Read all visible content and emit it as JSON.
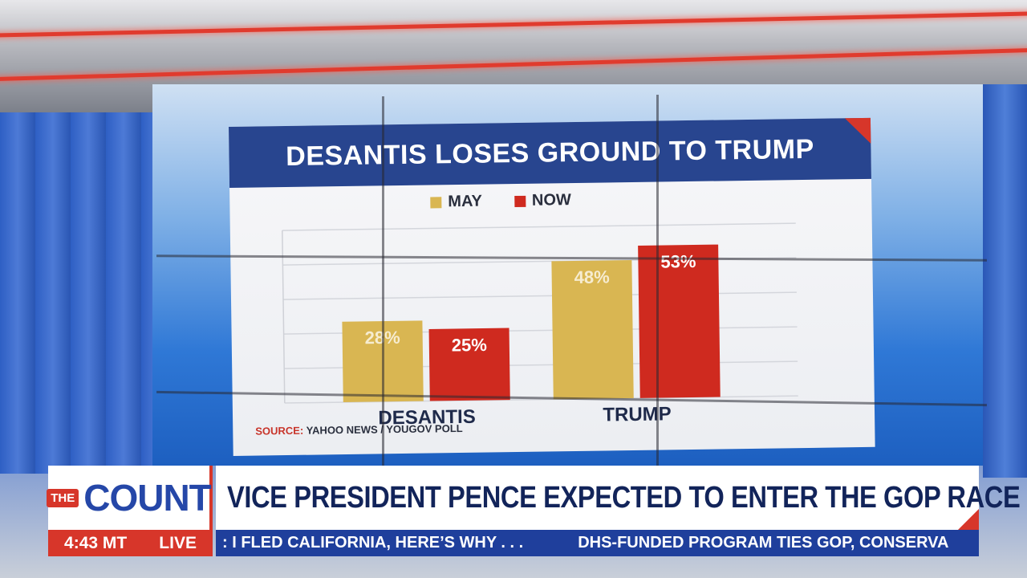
{
  "chart_data": {
    "type": "bar",
    "title": "DESANTIS LOSES GROUND TO TRUMP",
    "categories": [
      "DESANTIS",
      "TRUMP"
    ],
    "series": [
      {
        "name": "MAY",
        "values": [
          28,
          48
        ],
        "labels": [
          "28%",
          "48%"
        ]
      },
      {
        "name": "NOW",
        "values": [
          25,
          53
        ],
        "labels": [
          "25%",
          "53%"
        ]
      }
    ],
    "ylim": [
      0,
      60
    ],
    "grid": true,
    "legend": "top-center",
    "colors": {
      "MAY": "#d9b652",
      "NOW": "#cf2a1f"
    }
  },
  "source": {
    "label": "SOURCE:",
    "text": "YAHOO NEWS / YOUGOV POLL"
  },
  "lower_third": {
    "logo_the": "THE",
    "logo_count": "COUNT",
    "headline": "VICE PRESIDENT PENCE EXPECTED TO ENTER THE GOP RACE",
    "time": "4:43 MT",
    "live": "LIVE",
    "ticker": [
      ": I FLED CALIFORNIA, HERE’S WHY . . .",
      "DHS-FUNDED PROGRAM TIES GOP, CONSERVA"
    ]
  },
  "colors": {
    "accent_red": "#d7362a",
    "brand_blue": "#2547a8",
    "title_bar": "#28458f"
  }
}
